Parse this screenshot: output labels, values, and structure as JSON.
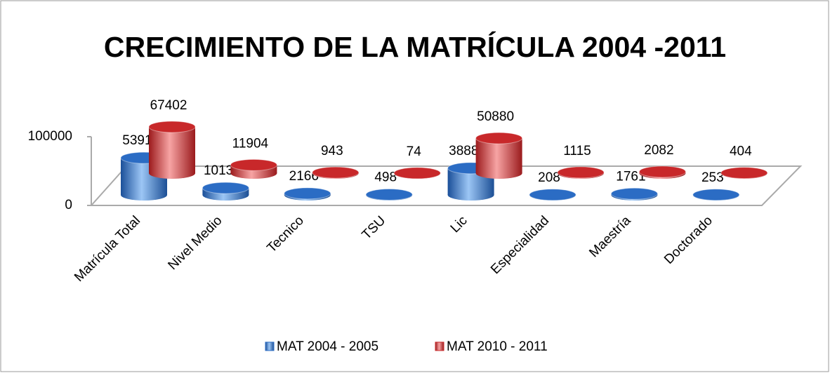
{
  "chart_data": {
    "type": "bar3d",
    "title": "CRECIMIENTO DE LA MATRÍCULA 2004 -2011",
    "categories": [
      "Matrícula Total",
      "Nivel Medio",
      "Tecnico",
      "TSU",
      "Lic",
      "Especialidad",
      "Maestría",
      "Doctorado"
    ],
    "series": [
      {
        "name": "MAT 2004 - 2005",
        "color": "#2b6cc4",
        "values": [
          53911,
          10136,
          2166,
          498,
          38889,
          208,
          1761,
          253
        ]
      },
      {
        "name": "MAT 2010 - 2011",
        "color": "#c8282a",
        "values": [
          67402,
          11904,
          943,
          74,
          50880,
          1115,
          2082,
          404
        ]
      }
    ],
    "ylim": [
      0,
      100000
    ],
    "yticks": [
      0,
      100000
    ],
    "legend": "bottom"
  }
}
